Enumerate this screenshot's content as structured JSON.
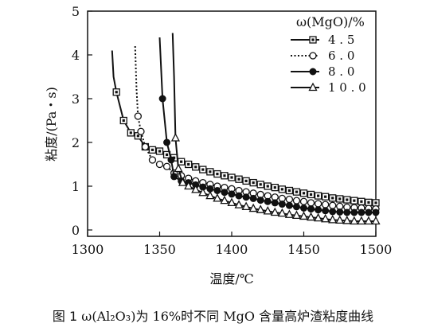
{
  "caption": {
    "prefix": "图 1",
    "omega": "ω(Al₂O₃)",
    "for": "为",
    "value": "16%",
    "text": "时不同",
    "mgo": "MgO",
    "suffix": "含量高炉渣粘度曲线"
  },
  "chart_data": {
    "type": "line",
    "xlabel": "温度/℃",
    "ylabel": "粘度/(Pa・s)",
    "xlim": [
      1300,
      1500
    ],
    "ylim": [
      0,
      5
    ],
    "xticks": [
      "1300",
      "1350",
      "1400",
      "1450",
      "1500"
    ],
    "yticks": [
      "0",
      "1",
      "2",
      "3",
      "4",
      "5"
    ],
    "legend": {
      "title": "ω(MgO)/%",
      "position": "top-right"
    },
    "series": [
      {
        "name": "4.5",
        "marker": "square",
        "style": "solid",
        "x": [
          1317,
          1318,
          1320,
          1325,
          1330,
          1335,
          1340,
          1345,
          1350,
          1355,
          1360,
          1365,
          1370,
          1375,
          1380,
          1385,
          1390,
          1395,
          1400,
          1405,
          1410,
          1415,
          1420,
          1425,
          1430,
          1435,
          1440,
          1445,
          1450,
          1455,
          1460,
          1465,
          1470,
          1475,
          1480,
          1485,
          1490,
          1495,
          1500
        ],
        "y": [
          4.1,
          3.5,
          3.15,
          2.5,
          2.22,
          2.15,
          1.9,
          1.83,
          1.8,
          1.72,
          1.65,
          1.56,
          1.5,
          1.44,
          1.38,
          1.33,
          1.28,
          1.24,
          1.2,
          1.16,
          1.12,
          1.08,
          1.04,
          1.0,
          0.97,
          0.93,
          0.9,
          0.87,
          0.84,
          0.81,
          0.78,
          0.76,
          0.73,
          0.71,
          0.69,
          0.67,
          0.65,
          0.63,
          0.62
        ]
      },
      {
        "name": "6.0",
        "marker": "circle-open",
        "style": "dotted",
        "x": [
          1333,
          1334,
          1335,
          1337,
          1340,
          1345,
          1350,
          1355,
          1360,
          1365,
          1370,
          1375,
          1380,
          1385,
          1390,
          1395,
          1400,
          1405,
          1410,
          1415,
          1420,
          1425,
          1430,
          1435,
          1440,
          1445,
          1450,
          1455,
          1460,
          1465,
          1470,
          1475,
          1480,
          1485,
          1490,
          1495,
          1500
        ],
        "y": [
          4.2,
          3.2,
          2.6,
          2.25,
          1.9,
          1.6,
          1.5,
          1.45,
          1.3,
          1.24,
          1.18,
          1.12,
          1.08,
          1.04,
          1.0,
          0.97,
          0.94,
          0.9,
          0.87,
          0.84,
          0.81,
          0.78,
          0.75,
          0.72,
          0.7,
          0.67,
          0.65,
          0.62,
          0.6,
          0.58,
          0.56,
          0.54,
          0.52,
          0.51,
          0.5,
          0.49,
          0.48
        ]
      },
      {
        "name": "8.0",
        "marker": "circle-filled",
        "style": "solid",
        "x": [
          1350,
          1351,
          1352,
          1355,
          1358,
          1360,
          1365,
          1370,
          1375,
          1380,
          1385,
          1390,
          1395,
          1400,
          1405,
          1410,
          1415,
          1420,
          1425,
          1430,
          1435,
          1440,
          1445,
          1450,
          1455,
          1460,
          1465,
          1470,
          1475,
          1480,
          1485,
          1490,
          1495,
          1500
        ],
        "y": [
          4.4,
          3.7,
          3.0,
          2.0,
          1.6,
          1.22,
          1.12,
          1.08,
          1.03,
          0.98,
          0.94,
          0.9,
          0.86,
          0.82,
          0.78,
          0.75,
          0.72,
          0.68,
          0.65,
          0.62,
          0.59,
          0.56,
          0.53,
          0.5,
          0.48,
          0.46,
          0.44,
          0.42,
          0.41,
          0.4,
          0.4,
          0.4,
          0.4,
          0.4
        ]
      },
      {
        "name": "10.0",
        "marker": "triangle",
        "style": "solid",
        "x": [
          1359,
          1360,
          1361,
          1363,
          1366,
          1370,
          1375,
          1380,
          1385,
          1390,
          1395,
          1400,
          1405,
          1410,
          1415,
          1420,
          1425,
          1430,
          1435,
          1440,
          1445,
          1450,
          1455,
          1460,
          1465,
          1470,
          1475,
          1480,
          1485,
          1490,
          1495,
          1500
        ],
        "y": [
          4.5,
          3.5,
          2.1,
          1.4,
          1.08,
          1.0,
          0.92,
          0.85,
          0.78,
          0.72,
          0.67,
          0.62,
          0.57,
          0.53,
          0.49,
          0.46,
          0.43,
          0.4,
          0.38,
          0.35,
          0.33,
          0.31,
          0.29,
          0.27,
          0.25,
          0.23,
          0.22,
          0.21,
          0.2,
          0.2,
          0.2,
          0.2
        ]
      }
    ]
  }
}
